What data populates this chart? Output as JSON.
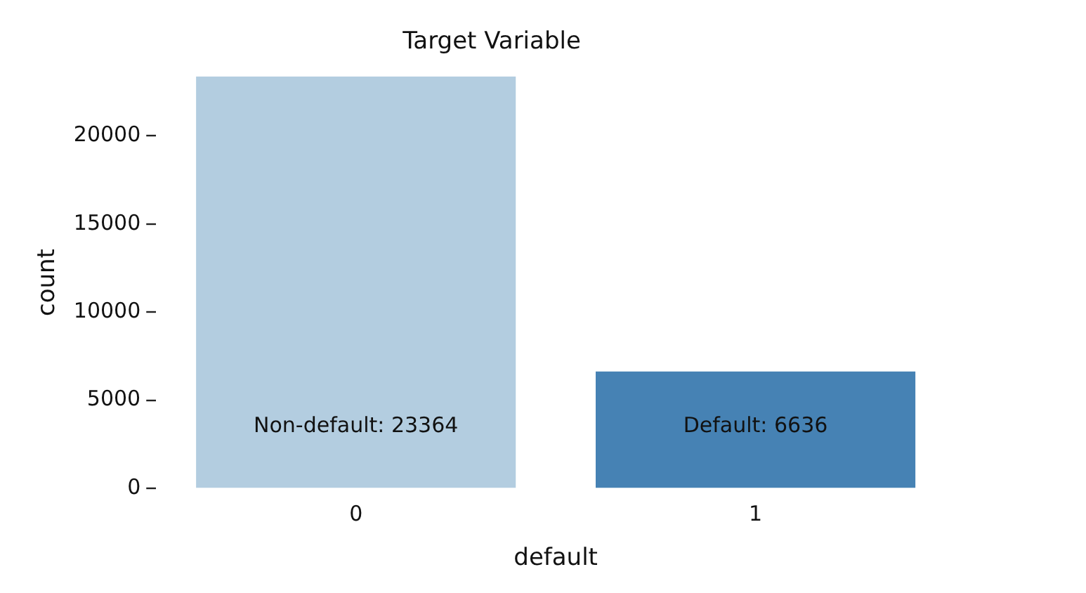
{
  "chart_data": {
    "type": "bar",
    "title": "Target Variable",
    "xlabel": "default",
    "ylabel": "count",
    "categories": [
      "0",
      "1"
    ],
    "values": [
      23364,
      6636
    ],
    "colors": [
      "#b3cde0",
      "#4682b4"
    ],
    "ylim": [
      0,
      23364
    ],
    "yticks": [
      0,
      5000,
      10000,
      15000,
      20000
    ],
    "grid": false,
    "legend": false,
    "annotations": [
      "Non-default: 23364",
      "Default: 6636"
    ]
  }
}
